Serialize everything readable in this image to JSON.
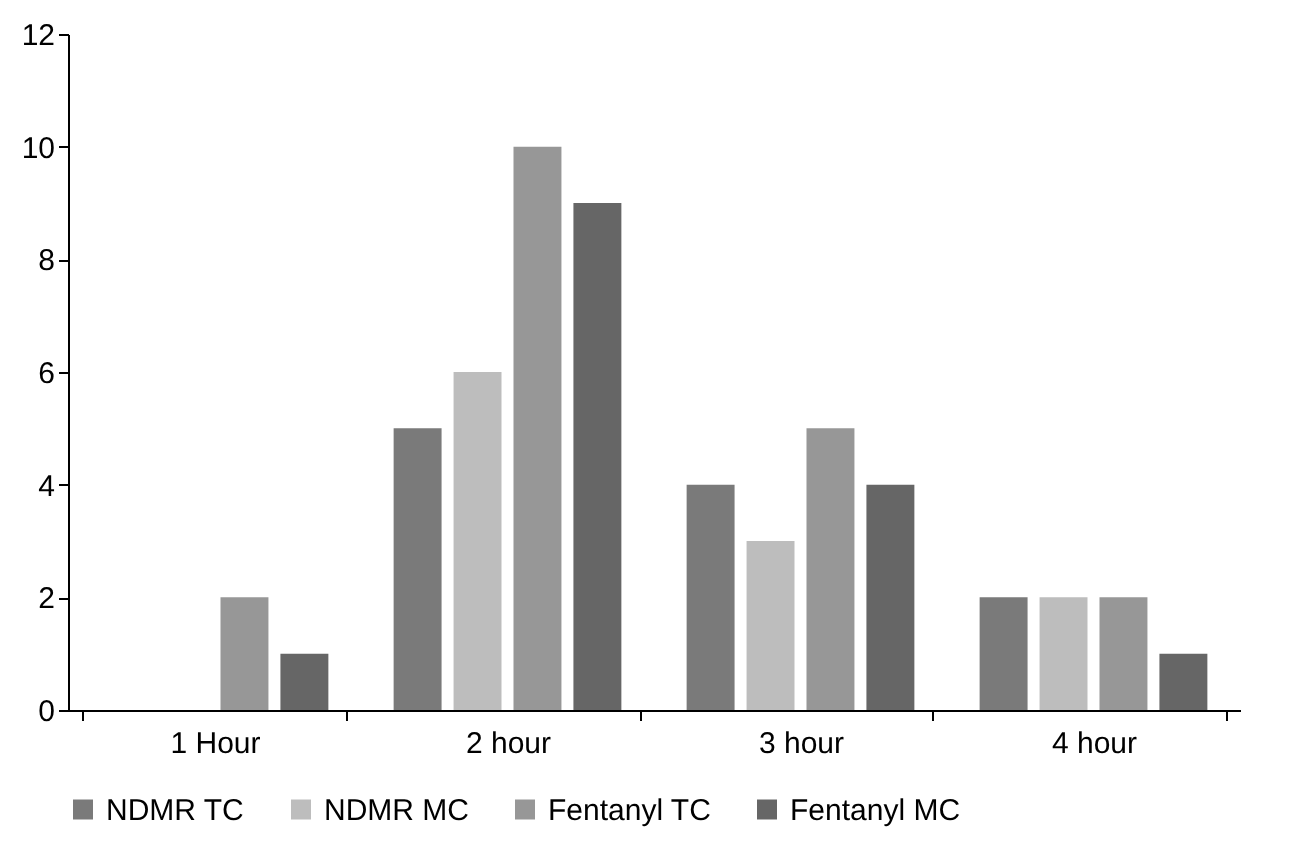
{
  "chart_data": {
    "type": "bar",
    "categories": [
      "1 Hour",
      "2 hour",
      "3 hour",
      "4 hour"
    ],
    "series": [
      {
        "name": "NDMR TC",
        "color": "#7a7a7a",
        "values": [
          0,
          5,
          4,
          2
        ]
      },
      {
        "name": "NDMR MC",
        "color": "#bdbdbd",
        "values": [
          0,
          6,
          3,
          2
        ]
      },
      {
        "name": "Fentanyl TC",
        "color": "#979797",
        "values": [
          2,
          10,
          5,
          2
        ]
      },
      {
        "name": "Fentanyl MC",
        "color": "#666666",
        "values": [
          1,
          9,
          4,
          1
        ]
      }
    ],
    "ylim": [
      0,
      12
    ],
    "yticks": [
      0,
      2,
      4,
      6,
      8,
      10,
      12
    ],
    "grid": false,
    "legend": "bottom"
  }
}
